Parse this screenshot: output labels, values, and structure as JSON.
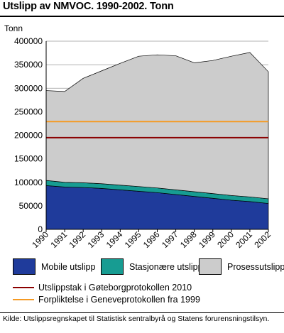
{
  "title": "Utslipp av NMVOC. 1990-2002. Tonn",
  "unit_label": "Tonn",
  "source": "Kilde: Utslippsregnskapet til Statistisk sentralbyrå og Statens forurensningstilsyn.",
  "colors": {
    "mobile": "#1f3b9b",
    "stasjonaere": "#179c92",
    "prosess": "#cccccc",
    "goteborg": "#8b0000",
    "geneve": "#f59a23",
    "grid": "#9a9a9a"
  },
  "chart_data": {
    "type": "area",
    "stacked": true,
    "categories": [
      "1990",
      "1991",
      "1992",
      "1993",
      "1994",
      "1995",
      "1996",
      "1997",
      "1998",
      "1999",
      "2000",
      "2001",
      "2002"
    ],
    "ylim": [
      0,
      400000
    ],
    "yticks": [
      0,
      50000,
      100000,
      150000,
      200000,
      250000,
      300000,
      350000,
      400000
    ],
    "ytick_labels": [
      "0",
      "50000",
      "100000",
      "150000",
      "200000",
      "250000",
      "300000",
      "350000",
      "400000"
    ],
    "grid": true,
    "series": [
      {
        "name": "Mobile utslipp",
        "key": "mobile",
        "values": [
          93000,
          90000,
          89000,
          87000,
          84000,
          81000,
          78000,
          74000,
          70000,
          66000,
          62000,
          59000,
          55000
        ]
      },
      {
        "name": "Stasjonære utslipp",
        "key": "stasjonaere",
        "values": [
          11000,
          10000,
          10000,
          10000,
          10000,
          10000,
          10000,
          10000,
          10000,
          10000,
          10000,
          10000,
          10000
        ]
      },
      {
        "name": "Prosessutslipp",
        "key": "prosess",
        "values": [
          191000,
          193000,
          222000,
          240000,
          259000,
          277000,
          283000,
          285000,
          274000,
          283000,
          296000,
          307000,
          270000
        ]
      }
    ],
    "reference_lines": [
      {
        "name": "Utslippstak i Gøteborgprotokollen 2010",
        "key": "goteborg",
        "value": 195000
      },
      {
        "name": "Forpliktelse i Geneveprotokollen fra 1999",
        "key": "geneve",
        "value": 229000
      }
    ],
    "legend_position": "bottom"
  }
}
